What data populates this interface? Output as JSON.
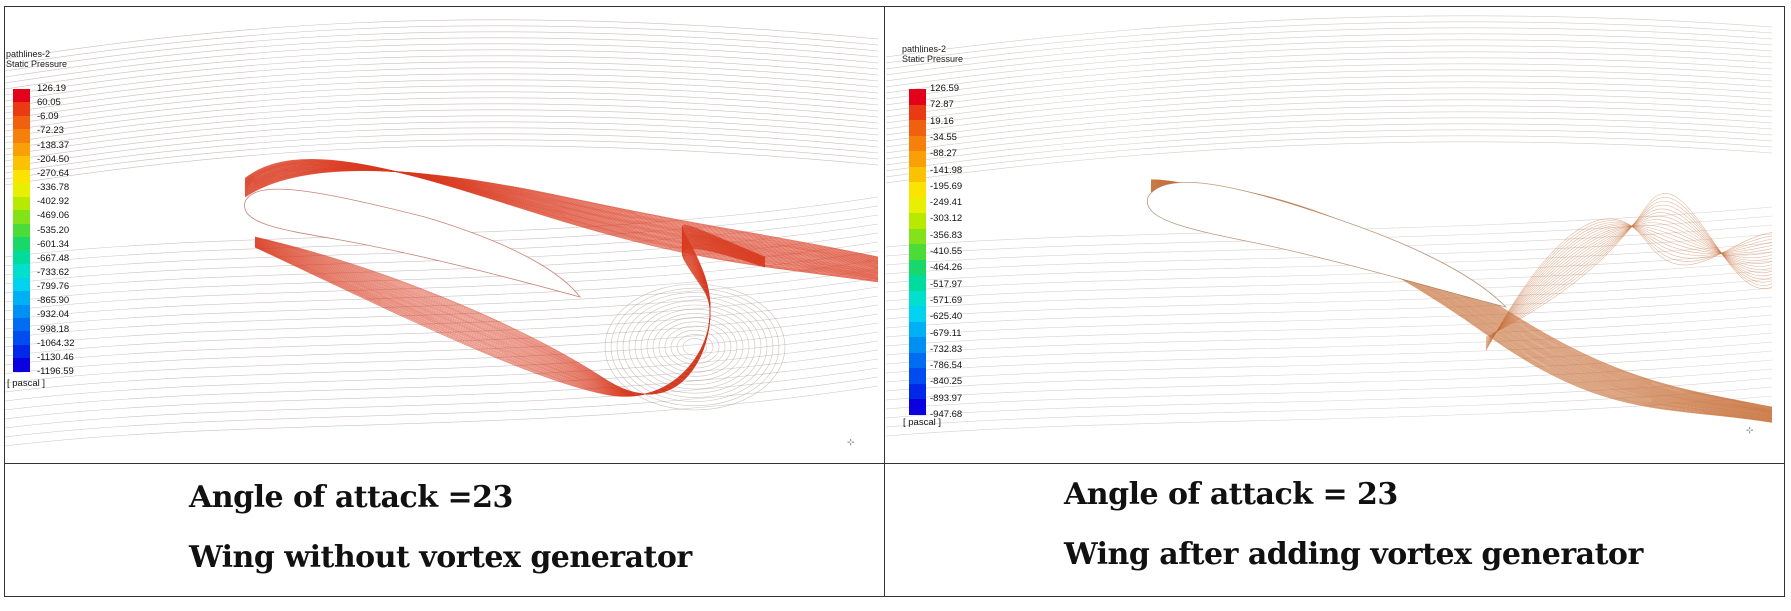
{
  "left_panel": {
    "name_line": "pathlines-2",
    "quantity_line": "Static Pressure",
    "unit": "[ pascal ]",
    "ticks": [
      "126.19",
      "60.05",
      "-6.09",
      "-72.23",
      "-138.37",
      "-204.50",
      "-270.64",
      "-336.78",
      "-402.92",
      "-469.06",
      "-535.20",
      "-601.34",
      "-667.48",
      "-733.62",
      "-799.76",
      "-865.90",
      "-932.04",
      "-998.18",
      "-1064.32",
      "-1130.46",
      "-1196.59"
    ],
    "pathline_color": "#d93a1f",
    "caption_line1": "Angle of  attack =23",
    "caption_line2": "Wing without vortex generator"
  },
  "right_panel": {
    "name_line": "pathlines-2",
    "quantity_line": "Static Pressure",
    "unit": "[ pascal ]",
    "ticks": [
      "126.59",
      "72.87",
      "19.16",
      "-34.55",
      "-88.27",
      "-141.98",
      "-195.69",
      "-249.41",
      "-303.12",
      "-356.83",
      "-410.55",
      "-464.26",
      "-517.97",
      "-571.69",
      "-625.40",
      "-679.11",
      "-732.83",
      "-786.54",
      "-840.25",
      "-893.97",
      "-947.68"
    ],
    "pathline_color": "#c8703a",
    "caption_line1": "Angle of attack = 23",
    "caption_line2": "Wing after adding vortex generator"
  },
  "colormap": [
    "#e3001a",
    "#ea3a14",
    "#f0600f",
    "#f5800b",
    "#f9a007",
    "#fbc204",
    "#fde302",
    "#e6f000",
    "#b8ea00",
    "#84e21a",
    "#4cdc3a",
    "#18d86a",
    "#00dc9e",
    "#00e0cc",
    "#00d2f0",
    "#00b0f4",
    "#0090f4",
    "#006cf2",
    "#004cee",
    "#0028e8",
    "#0a00e0"
  ]
}
